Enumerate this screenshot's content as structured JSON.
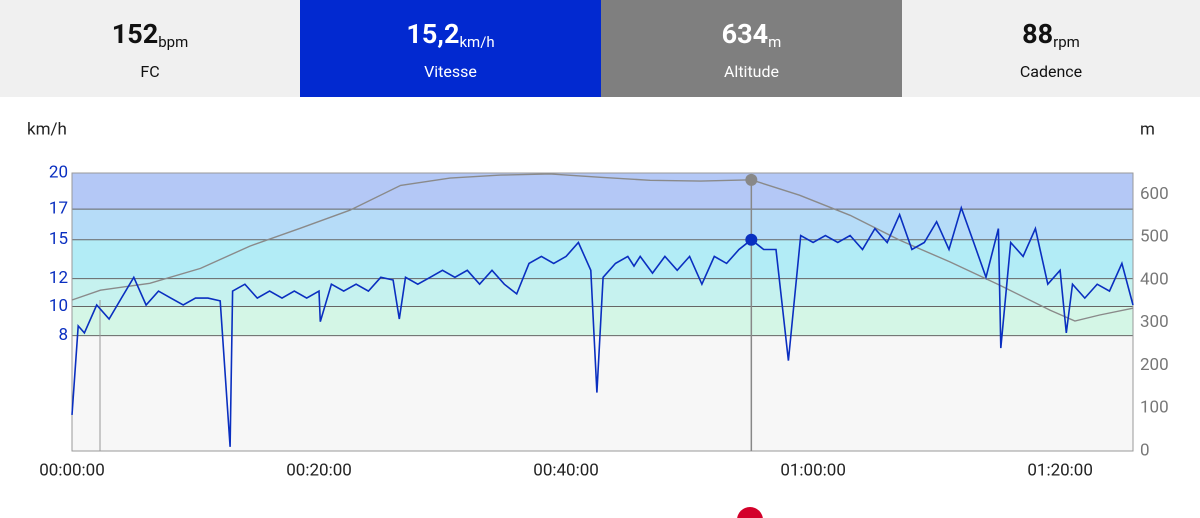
{
  "header": {
    "tiles": [
      {
        "value": "152",
        "unit": "bpm",
        "label": "FC"
      },
      {
        "value": "15,2",
        "unit": "km/h",
        "label": "Vitesse"
      },
      {
        "value": "634",
        "unit": "m",
        "label": "Altitude"
      },
      {
        "value": "88",
        "unit": "rpm",
        "label": "Cadence"
      }
    ]
  },
  "chart_data": {
    "type": "line",
    "y_label": "km/h",
    "y2_label": "m",
    "xlim": [
      0,
      85.9
    ],
    "xticks": [
      {
        "value": 0,
        "label": "00:00:00"
      },
      {
        "value": 20,
        "label": "00:20:00"
      },
      {
        "value": 40,
        "label": "00:40:00"
      },
      {
        "value": 60,
        "label": "01:00:00"
      },
      {
        "value": 80,
        "label": "01:20:00"
      }
    ],
    "ylim": [
      0,
      20
    ],
    "yticks": [
      20,
      {
        "value": 17.4,
        "label": "17"
      },
      {
        "value": 15.2,
        "label": "15"
      },
      {
        "value": 12.4,
        "label": "12"
      },
      {
        "value": 10.4,
        "label": "10"
      },
      {
        "value": 8.3,
        "label": "8"
      }
    ],
    "zone_colors": [
      "#b4c8f6",
      "#b6dcf8",
      "#b2ecf6",
      "#c6f2ef",
      "#d4f6e6",
      "#f7f7f7"
    ],
    "y2lim": [
      0,
      650
    ],
    "y2ticks": [
      0,
      100,
      200,
      300,
      400,
      500,
      600
    ],
    "series": [
      {
        "name": "Vitesse",
        "color": "#0a2fc0",
        "x": [
          0,
          0.5,
          1,
          2,
          3,
          4,
          5,
          6,
          7,
          8,
          9,
          10,
          11,
          12,
          12.8,
          13,
          14,
          15,
          16,
          17,
          18,
          19,
          20,
          20.1,
          21,
          22,
          23,
          24,
          25,
          26,
          26.5,
          27,
          28,
          29,
          30,
          31,
          32,
          33,
          34,
          35,
          36,
          37,
          38,
          39,
          40,
          41,
          42,
          42.5,
          43,
          44,
          45,
          45.5,
          46,
          47,
          48,
          49,
          50,
          51,
          52,
          53,
          54,
          55,
          56,
          57,
          58,
          59,
          60,
          61,
          62,
          63,
          64,
          65,
          66,
          67,
          68,
          69,
          70,
          71,
          72,
          73,
          74,
          75,
          75.2,
          76,
          77,
          78,
          79,
          80,
          80.5,
          81,
          82,
          83,
          84,
          85,
          85.9
        ],
        "values": [
          2.6,
          9,
          8.5,
          10.5,
          9.5,
          11,
          12.5,
          10.5,
          11.5,
          11,
          10.5,
          11,
          11,
          10.8,
          0.3,
          11.5,
          12,
          11,
          11.5,
          11,
          11.5,
          11,
          11.5,
          9.3,
          12,
          11.5,
          12,
          11.5,
          12.5,
          12.3,
          9.5,
          12.5,
          12,
          12.5,
          13,
          12.5,
          13,
          12,
          13,
          12,
          11.3,
          13.5,
          14,
          13.5,
          14,
          15,
          13,
          4.2,
          12.5,
          13.5,
          14,
          13.3,
          14,
          12.8,
          14,
          13,
          14,
          12,
          14,
          13.5,
          14.5,
          15.2,
          14.5,
          14.5,
          6.5,
          15.5,
          15,
          15.5,
          15,
          15.5,
          14.5,
          16,
          15,
          17,
          14.5,
          15,
          16.5,
          14.5,
          17.5,
          15,
          12.5,
          16,
          7.4,
          15,
          14,
          16,
          12,
          13,
          8.5,
          12,
          11,
          12,
          11.5,
          13.5,
          10.5
        ]
      },
      {
        "name": "Altitude",
        "color": "#8a8a8a",
        "axis": "y2",
        "x": [
          0,
          2.3,
          6.3,
          10.4,
          14.4,
          18.5,
          22.5,
          26.6,
          30.6,
          34.7,
          38.7,
          42.8,
          46.8,
          50.9,
          55,
          58.9,
          63,
          67,
          71.1,
          75.1,
          79.2,
          81.2,
          83.2,
          85.9
        ],
        "values": [
          353,
          376,
          392,
          427,
          479,
          521,
          563,
          621,
          638,
          645,
          648,
          640,
          633,
          631,
          634,
          598,
          551,
          493,
          442,
          388,
          329,
          304,
          318,
          334
        ]
      }
    ],
    "cursor": {
      "x": 55,
      "values": [
        15.2,
        634
      ]
    }
  }
}
